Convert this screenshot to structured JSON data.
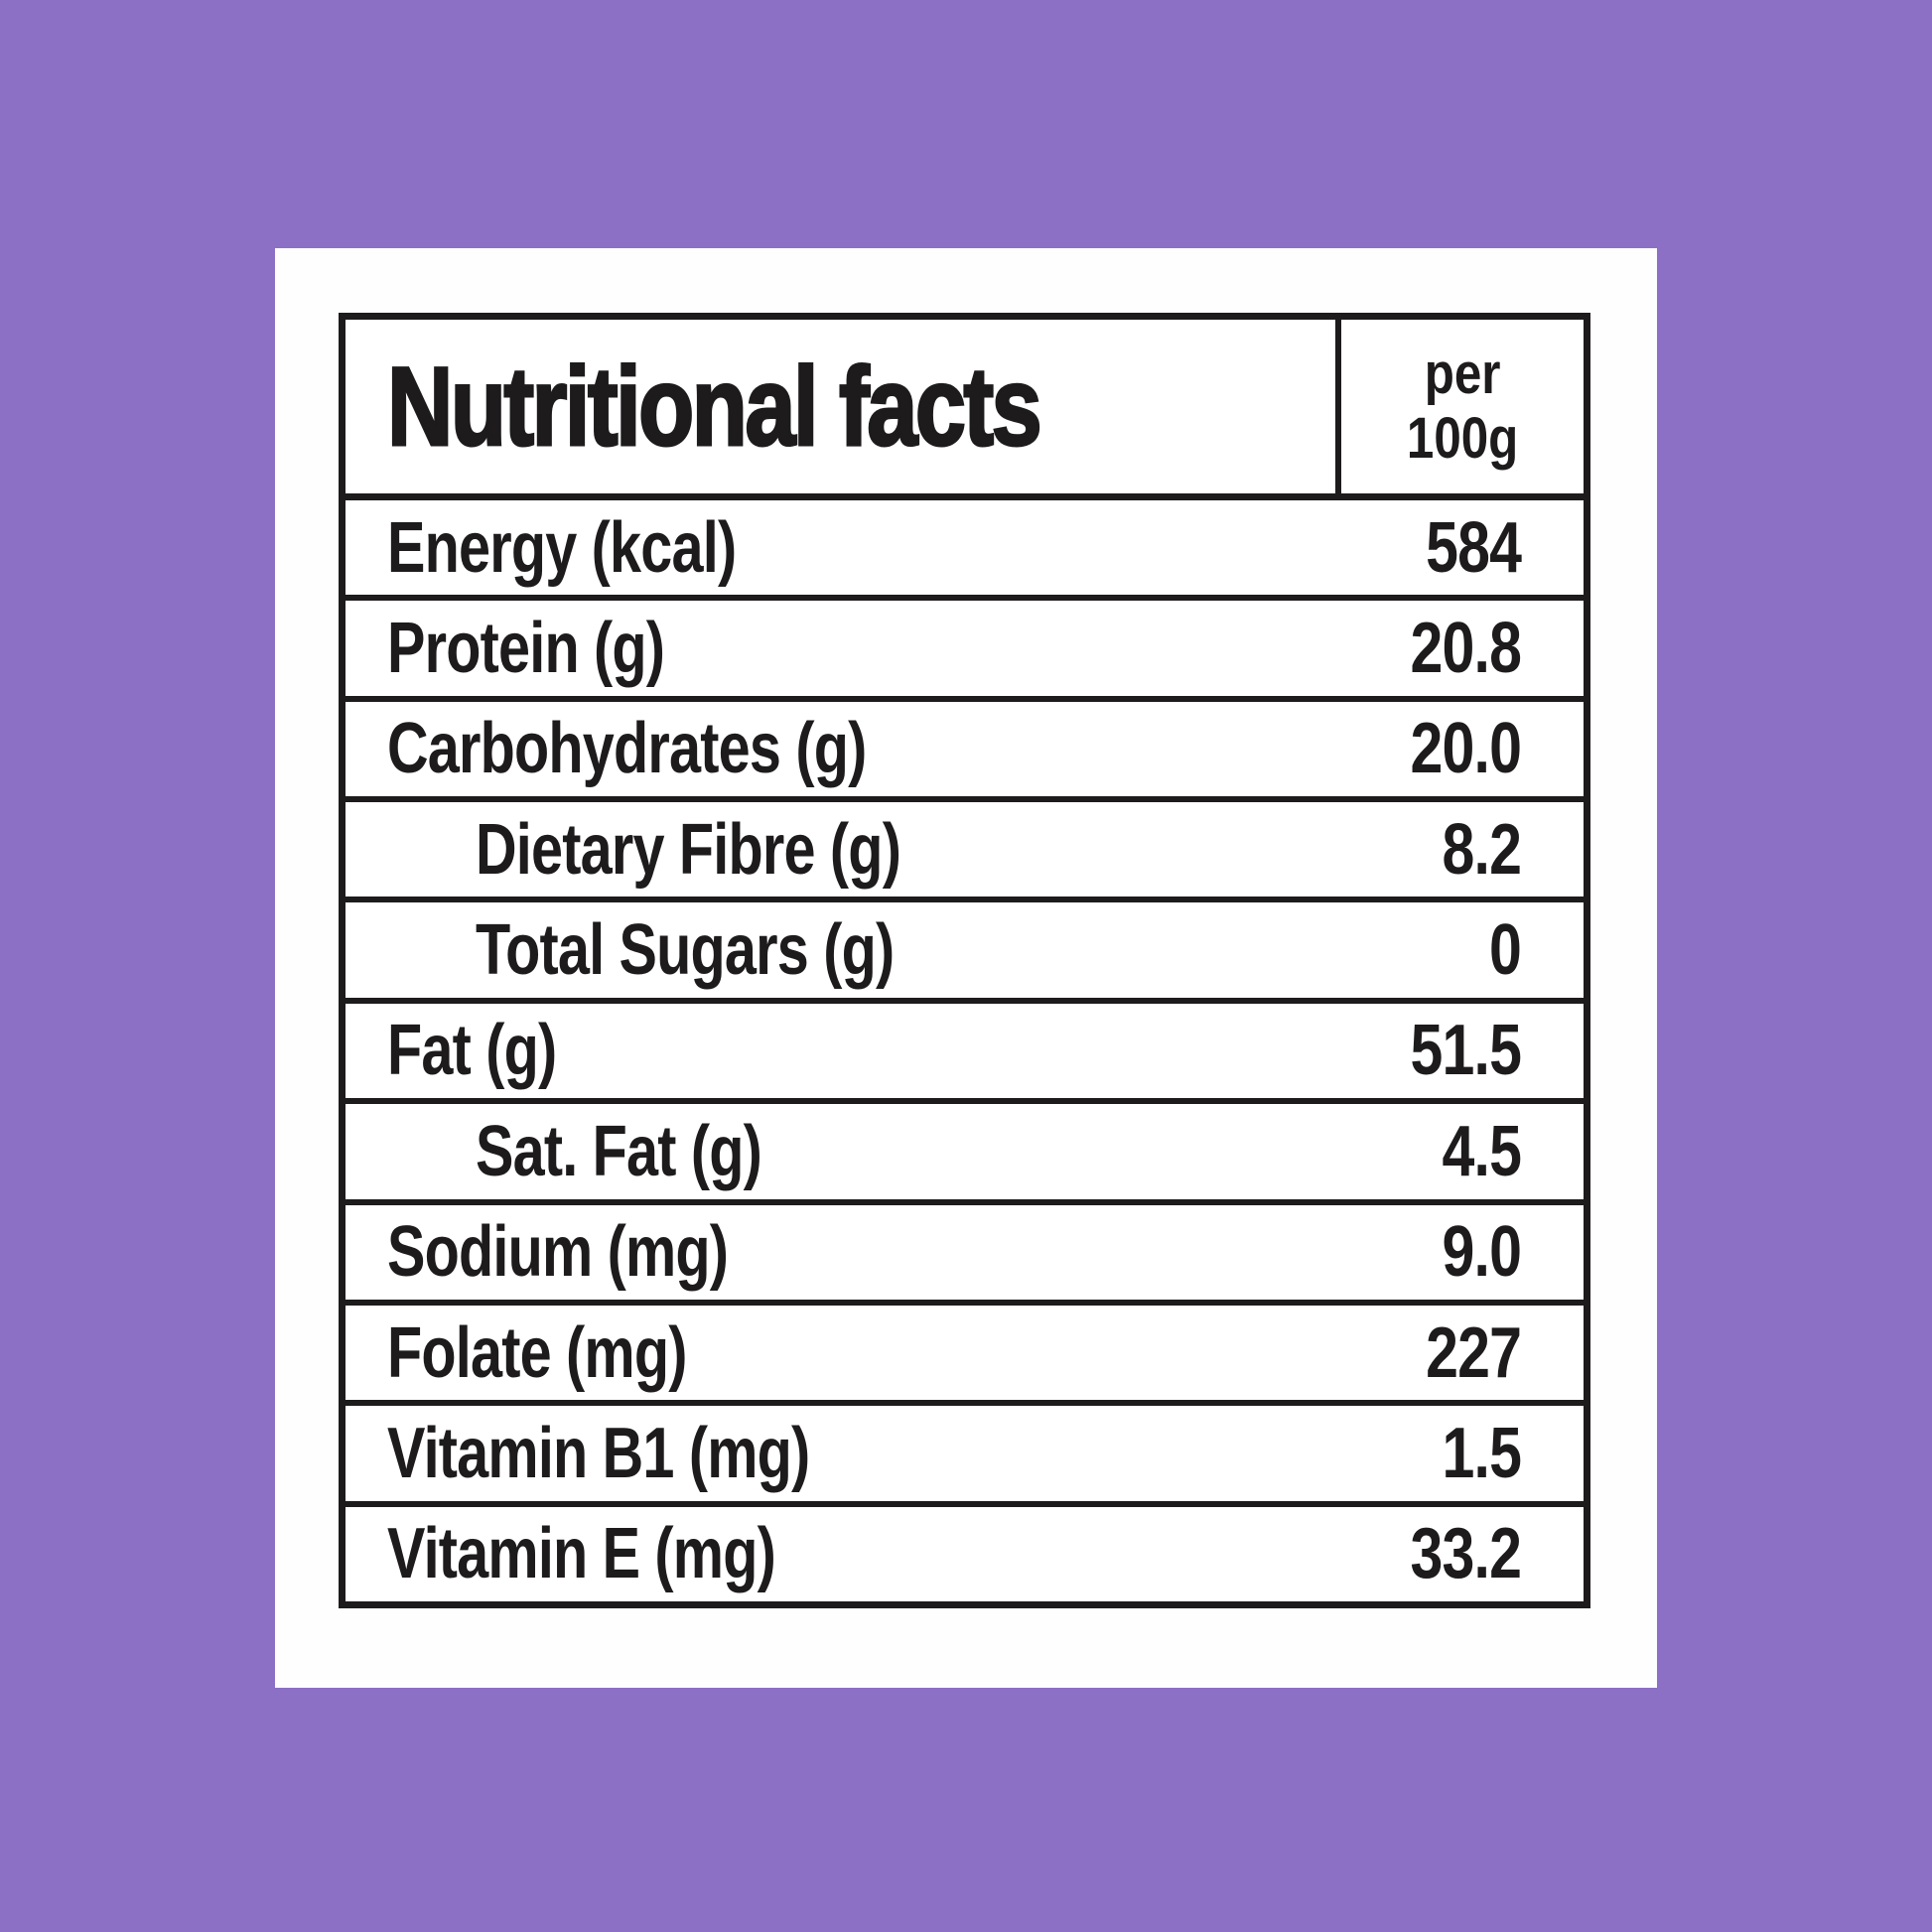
{
  "colors": {
    "background": "#8C70C6",
    "card": "#FEFEFE",
    "ink": "#1D1B1C"
  },
  "label": {
    "title": "Nutritional facts",
    "unit": {
      "line1": "per",
      "line2": "100g"
    },
    "rows": [
      {
        "name": "Energy (kcal)",
        "value": "584",
        "indent": false
      },
      {
        "name": "Protein (g)",
        "value": "20.8",
        "indent": false
      },
      {
        "name": "Carbohydrates (g)",
        "value": "20.0",
        "indent": false
      },
      {
        "name": "Dietary Fibre (g)",
        "value": "8.2",
        "indent": true
      },
      {
        "name": "Total Sugars (g)",
        "value": "0",
        "indent": true
      },
      {
        "name": "Fat (g)",
        "value": "51.5",
        "indent": false
      },
      {
        "name": "Sat. Fat (g)",
        "value": "4.5",
        "indent": true
      },
      {
        "name": "Sodium (mg)",
        "value": "9.0",
        "indent": false
      },
      {
        "name": "Folate (mg)",
        "value": "227",
        "indent": false
      },
      {
        "name": "Vitamin B1 (mg)",
        "value": "1.5",
        "indent": false
      },
      {
        "name": "Vitamin E (mg)",
        "value": "33.2",
        "indent": false
      }
    ]
  }
}
